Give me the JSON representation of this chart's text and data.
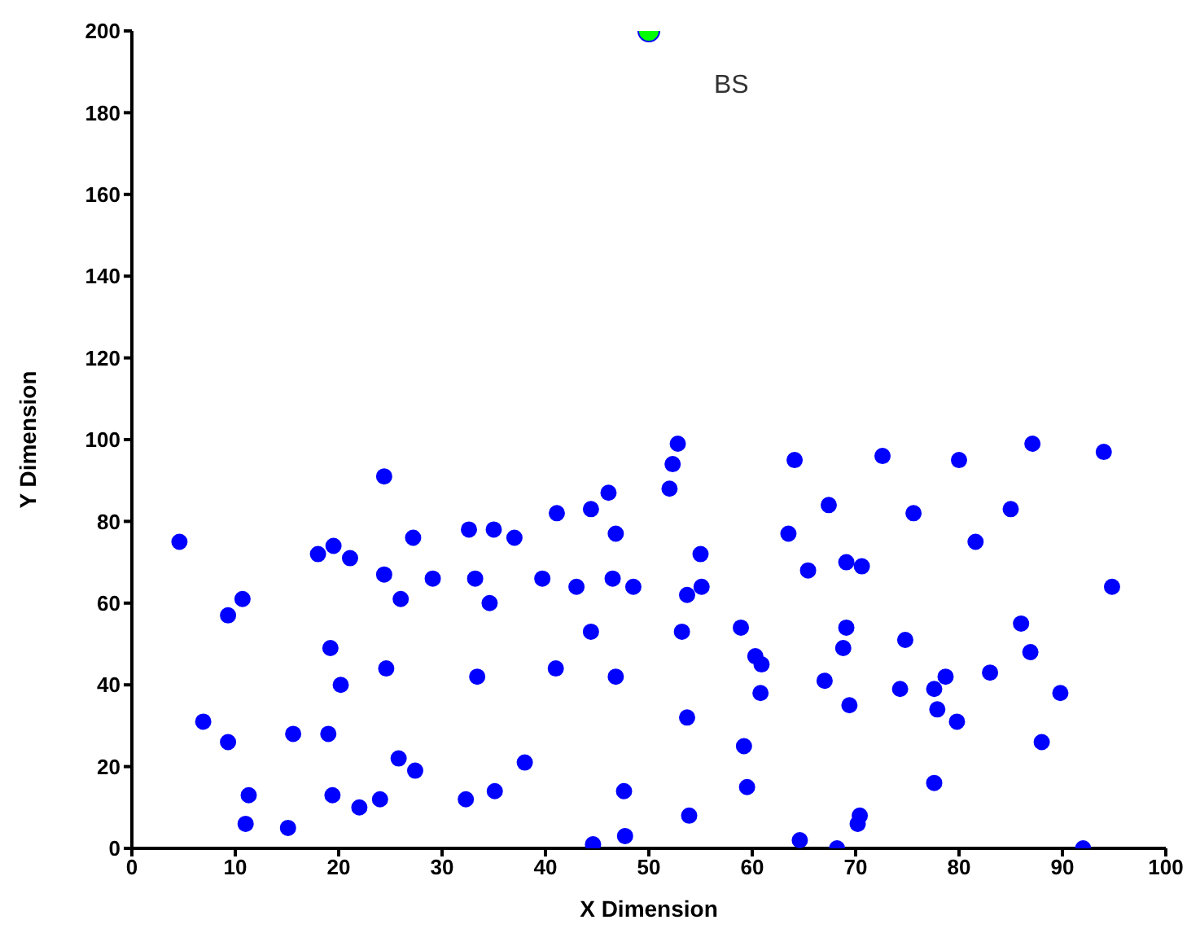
{
  "chart_data": {
    "type": "scatter",
    "xlabel": "X Dimension",
    "ylabel": "Y Dimension",
    "xlim": [
      0,
      100
    ],
    "xticks": [
      0,
      10,
      20,
      30,
      40,
      50,
      60,
      70,
      80,
      90,
      100
    ],
    "ylim": [
      0,
      200
    ],
    "yticks": [
      0,
      20,
      40,
      60,
      80,
      100,
      120,
      140,
      160,
      180,
      200
    ],
    "grid": false,
    "legend": false,
    "marker": "circle",
    "series": [
      {
        "color": "#0000ff",
        "x": [
          4.6,
          6.9,
          9.3,
          9.3,
          10.7,
          11.3,
          11.0,
          15.1,
          15.6,
          18,
          19,
          19.4,
          19.2,
          19.5,
          20.2,
          21.1,
          22,
          24,
          24.4,
          24.4,
          24.6,
          25.8,
          26,
          27.2,
          27.4,
          29.1,
          32.3,
          32.6,
          33.2,
          33.4,
          34.6,
          35,
          35.1,
          37,
          38,
          39.7,
          41,
          41.1,
          43,
          44.4,
          44.4,
          44.6,
          46.1,
          46.5,
          46.8,
          46.8,
          47.6,
          47.7,
          48.5,
          52,
          52.3,
          52.8,
          53.2,
          53.7,
          53.7,
          53.9,
          55,
          55.1,
          58.9,
          59.2,
          59.5,
          60.3,
          60.9,
          60.8,
          63.5,
          64.1,
          64.6,
          65.4,
          67,
          67.4,
          68.2,
          68.8,
          69.1,
          69.1,
          69.4,
          70.4,
          70.2,
          70.6,
          72.6,
          74.3,
          74.8,
          75.6,
          77.6,
          77.6,
          77.9,
          78.7,
          79.8,
          80,
          81.6,
          83,
          85,
          86,
          86.9,
          87.1,
          88,
          89.8,
          92,
          94,
          94.8
        ],
        "values": [
          75,
          31,
          26,
          57,
          61,
          13,
          6,
          5,
          28,
          72,
          28,
          13,
          49,
          74,
          40,
          71,
          10,
          12,
          91,
          67,
          44,
          22,
          61,
          76,
          19,
          66,
          12,
          78,
          66,
          42,
          60,
          78,
          14,
          76,
          21,
          66,
          44,
          82,
          64,
          53,
          83,
          1,
          87,
          66,
          77,
          42,
          14,
          3,
          64,
          88,
          94,
          99,
          53,
          62,
          32,
          8,
          72,
          64,
          54,
          25,
          15,
          47,
          45,
          38,
          77,
          95,
          2,
          68,
          41,
          84,
          0,
          49,
          54,
          70,
          35,
          8,
          6,
          69,
          96,
          39,
          51,
          82,
          16,
          39,
          34,
          42,
          31,
          95,
          75,
          43,
          83,
          55,
          48,
          99,
          26,
          38,
          0,
          97,
          64
        ]
      },
      {
        "color": "#00ff00",
        "x": [
          50
        ],
        "values": [
          200
        ]
      }
    ],
    "annotations": [
      {
        "text": "BS",
        "x": 50,
        "y": 200
      }
    ]
  }
}
